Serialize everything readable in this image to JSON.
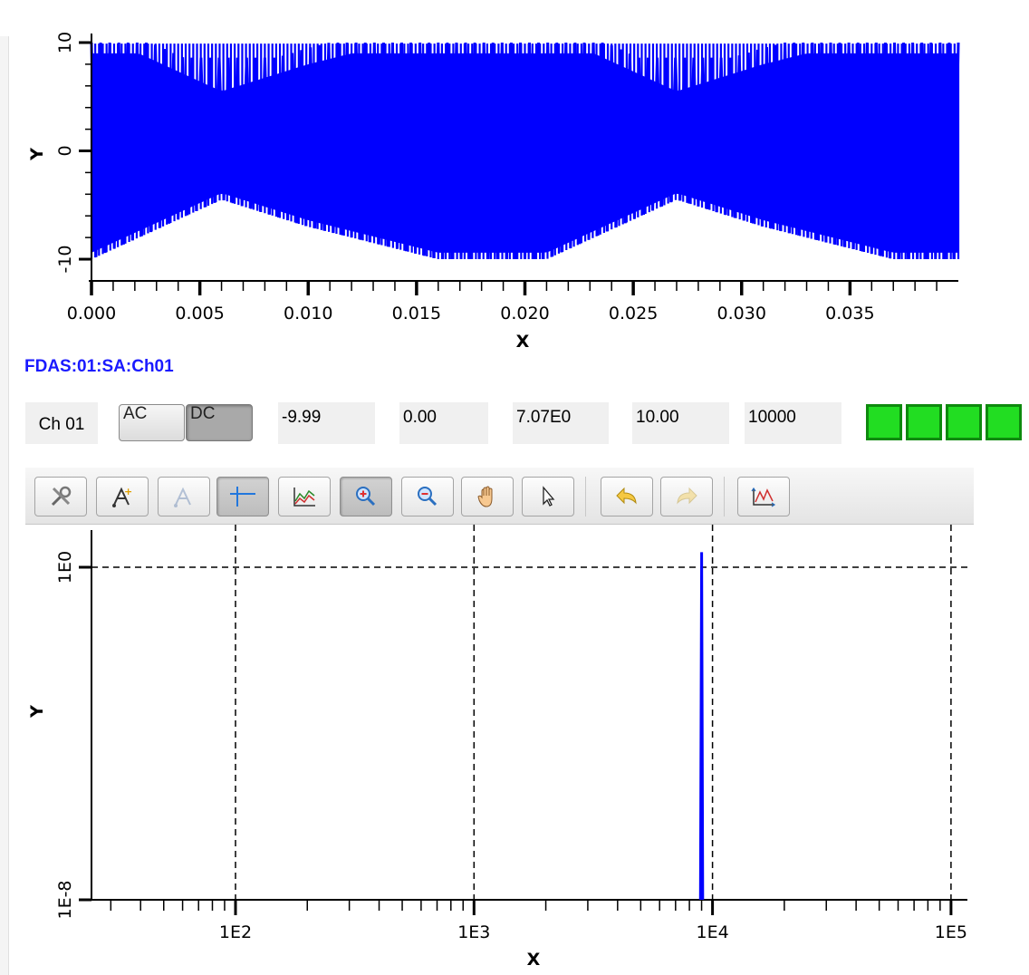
{
  "waveform_plot": {
    "ylabel": "Y",
    "xlabel": "X",
    "yticks": [
      "10",
      "0",
      "-10"
    ],
    "xticks": [
      "0.000",
      "0.005",
      "0.010",
      "0.015",
      "0.020",
      "0.025",
      "0.030",
      "0.035"
    ],
    "trace_color": "#0000ff"
  },
  "pv_name": "FDAS:01:SA:Ch01",
  "channel": {
    "label": "Ch 01",
    "ac_label": "AC",
    "dc_label": "DC",
    "dc_selected": true,
    "min": "-9.99",
    "mean": "0.00",
    "rms": "7.07E0",
    "max": "10.00",
    "samples": "10000",
    "indicator_color": "#22dd22",
    "indicators": 4
  },
  "toolbar": {
    "buttons": [
      {
        "icon": "settings-tools-icon",
        "checked": false,
        "enabled": true
      },
      {
        "icon": "add-annotation-icon",
        "checked": false,
        "enabled": true
      },
      {
        "icon": "remove-annotation-icon",
        "checked": false,
        "enabled": false
      },
      {
        "icon": "crosshair-icon",
        "checked": true,
        "enabled": true
      },
      {
        "icon": "stagger-plot-icon",
        "checked": false,
        "enabled": true
      },
      {
        "icon": "zoom-in-icon",
        "checked": true,
        "enabled": true
      },
      {
        "icon": "zoom-out-icon",
        "checked": false,
        "enabled": true
      },
      {
        "icon": "pan-hand-icon",
        "checked": false,
        "enabled": true
      },
      {
        "icon": "pointer-icon",
        "checked": false,
        "enabled": true
      },
      {
        "icon": "undo-icon",
        "checked": false,
        "enabled": true
      },
      {
        "icon": "redo-icon",
        "checked": false,
        "enabled": false
      },
      {
        "icon": "auto-scale-icon",
        "checked": false,
        "enabled": true
      }
    ]
  },
  "spectrum_plot": {
    "ylabel": "Y",
    "xlabel": "X",
    "yticks": [
      "1E0",
      "1E-8"
    ],
    "xticks": [
      "1E2",
      "1E3",
      "1E4",
      "1E5"
    ],
    "trace_color": "#0000ff"
  },
  "chart_data": [
    {
      "type": "line",
      "xlabel": "X",
      "ylabel": "Y",
      "xlim": [
        0,
        0.04
      ],
      "ylim": [
        -11,
        10.5
      ],
      "x_ticks": [
        0.0,
        0.005,
        0.01,
        0.015,
        0.02,
        0.025,
        0.03,
        0.035
      ],
      "y_ticks": [
        -10,
        0,
        10
      ],
      "grid": false,
      "series": [
        {
          "description": "dense oscillating signal ±10 with beating envelope",
          "envelope_x": [
            0.0,
            0.006,
            0.01,
            0.016,
            0.021,
            0.027,
            0.031,
            0.037,
            0.04
          ],
          "envelope_min_amplitude": [
            10,
            4.5,
            7,
            10,
            10,
            4.5,
            7,
            10,
            10
          ]
        }
      ]
    },
    {
      "type": "line",
      "xlabel": "X",
      "ylabel": "Y",
      "x_scale": "log",
      "y_scale": "log",
      "xlim": [
        25,
        120000
      ],
      "ylim": [
        1e-08,
        10
      ],
      "x_ticks": [
        100,
        1000,
        10000,
        100000
      ],
      "y_ticks": [
        1,
        1e-08
      ],
      "grid": true,
      "series": [
        {
          "description": "single spectral peak",
          "x": [
            8900,
            9000,
            9100
          ],
          "y": [
            1e-08,
            2.3,
            1e-08
          ]
        }
      ]
    }
  ]
}
